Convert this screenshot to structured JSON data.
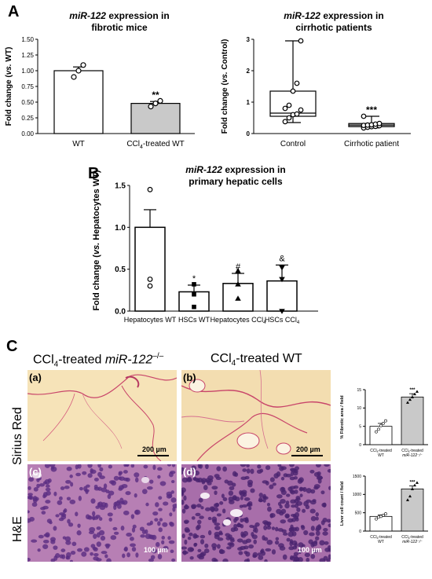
{
  "panels": {
    "a": "A",
    "b": "B",
    "c": "C"
  },
  "chart_data": [
    {
      "id": "A-left",
      "type": "bar",
      "title_prefix": "miR-122",
      "title_rest": " expression in",
      "title_line2": "fibrotic mice",
      "ylabel_prefix": "Fold change (",
      "ylabel_vs": "vs.",
      "ylabel_rest": " WT)",
      "ylim": [
        0,
        1.5
      ],
      "yticks": [
        "0.00",
        "0.25",
        "0.50",
        "0.75",
        "1.00",
        "1.25",
        "1.50"
      ],
      "categories": [
        "WT",
        "CCl4-treated WT"
      ],
      "cat_labels": [
        "WT",
        "CCl",
        "4",
        "-treated WT"
      ],
      "values": [
        1.0,
        0.48
      ],
      "errors": [
        0.06,
        0.03
      ],
      "points": [
        [
          0.9,
          1.0,
          1.09
        ],
        [
          0.43,
          0.48,
          0.52
        ]
      ],
      "colors": [
        "#ffffff",
        "#c9c9c9"
      ],
      "signif": [
        "",
        "**"
      ]
    },
    {
      "id": "A-right",
      "type": "box",
      "title_prefix": "miR-122",
      "title_rest": " expression in",
      "title_line2": "cirrhotic patients",
      "ylabel_prefix": "Fold change (",
      "ylabel_vs": "vs.",
      "ylabel_rest": " Control)",
      "ylim": [
        0,
        3
      ],
      "yticks": [
        "0",
        "1",
        "2",
        "3"
      ],
      "categories": [
        "Control",
        "Cirrhotic patient"
      ],
      "boxes": [
        {
          "min": 0.35,
          "q1": 0.55,
          "median": 0.65,
          "q3": 1.35,
          "max": 2.95
        },
        {
          "min": 0.18,
          "q1": 0.22,
          "median": 0.27,
          "q3": 0.32,
          "max": 0.55
        }
      ],
      "points": [
        [
          0.38,
          0.5,
          0.6,
          0.62,
          0.75,
          0.8,
          0.9,
          1.35,
          1.6,
          2.95
        ],
        [
          0.18,
          0.2,
          0.22,
          0.23,
          0.25,
          0.26,
          0.27,
          0.28,
          0.3,
          0.32,
          0.55
        ]
      ],
      "colors": [
        "#ffffff",
        "#c9c9c9"
      ],
      "signif": [
        "",
        "***"
      ]
    },
    {
      "id": "B",
      "type": "bar",
      "title_prefix": "miR-122",
      "title_rest": " expression in",
      "title_line2": "primary hepatic cells",
      "ylabel_prefix": "Fold change  (",
      "ylabel_vs": "vs.",
      "ylabel_rest": " Hepatocytes WT)",
      "ylim": [
        0,
        1.5
      ],
      "yticks": [
        "0.0",
        "0.5",
        "1.0",
        "1.5"
      ],
      "categories": [
        "Hepatocytes WT",
        "HSCs WT",
        "Hepatocytes CCl4",
        "HSCs CCl4"
      ],
      "cat_labels": [
        [
          "Hepatocytes WT",
          ""
        ],
        [
          "HSCs WT",
          ""
        ],
        [
          "Hepatocytes CCl",
          "4"
        ],
        [
          "HSCs CCl",
          "4"
        ]
      ],
      "values": [
        1.0,
        0.23,
        0.33,
        0.36
      ],
      "errors": [
        0.21,
        0.08,
        0.12,
        0.19
      ],
      "points": [
        [
          0.3,
          0.38,
          1.45
        ],
        [
          0.05,
          0.2,
          0.32
        ],
        [
          0.15,
          0.32,
          0.48
        ],
        [
          0.0,
          0.38,
          0.52
        ]
      ],
      "markers": [
        "circle",
        "square",
        "triangle",
        "triangle-down"
      ],
      "signif": [
        "",
        "*",
        "#",
        "&"
      ]
    },
    {
      "id": "C-top",
      "type": "bar",
      "ylabel": "% Fibrotic area / field",
      "ylim": [
        0,
        15
      ],
      "yticks": [
        "0",
        "5",
        "10",
        "15"
      ],
      "categories": [
        "CCl4-treated WT",
        "CCl4-treated miR-122-/-"
      ],
      "cat_labels": [
        [
          "CCl",
          "4",
          "-treated",
          "WT"
        ],
        [
          "CCl",
          "4",
          "-treated",
          "miR-122⁻/⁻"
        ]
      ],
      "values": [
        5.0,
        13.0
      ],
      "errors": [
        0.8,
        0.9
      ],
      "points": [
        [
          3.5,
          4.2,
          5.2,
          5.8,
          6.5
        ],
        [
          11.5,
          12.3,
          13.0,
          13.8,
          14.5
        ]
      ],
      "colors": [
        "#ffffff",
        "#c9c9c9"
      ],
      "signif": [
        "",
        "***"
      ]
    },
    {
      "id": "C-bottom",
      "type": "bar",
      "ylabel": "Liver cell count / field",
      "ylim": [
        0,
        1500
      ],
      "yticks": [
        "0",
        "500",
        "1000",
        "1500"
      ],
      "categories": [
        "CCl4-treated WT",
        "CCl4-treated miR-122-/-"
      ],
      "cat_labels": [
        [
          "CCl",
          "4",
          "-treated",
          "WT"
        ],
        [
          "CCl",
          "4",
          "-treated",
          "miR-122⁻/⁻"
        ]
      ],
      "values": [
        400,
        1150
      ],
      "errors": [
        40,
        80
      ],
      "points": [
        [
          330,
          380,
          400,
          430,
          470
        ],
        [
          850,
          950,
          1150,
          1250,
          1320
        ]
      ],
      "colors": [
        "#ffffff",
        "#c9c9c9"
      ],
      "signif": [
        "",
        "***"
      ]
    }
  ],
  "panelC": {
    "col1_prefix": "CCl",
    "col1_sub": "4",
    "col1_mid": "-treated ",
    "col1_italic": "miR-122",
    "col1_sup": "–/–",
    "col2_prefix": "CCl",
    "col2_sub": "4",
    "col2_rest": "-treated WT",
    "row1": "Sirius Red",
    "row2": "H&E",
    "photos": [
      {
        "label": "(a)",
        "scale": "200 µm"
      },
      {
        "label": "(b)",
        "scale": "200 µm"
      },
      {
        "label": "(c)",
        "scale": "100 µm"
      },
      {
        "label": "(d)",
        "scale": "100 µm"
      }
    ]
  }
}
